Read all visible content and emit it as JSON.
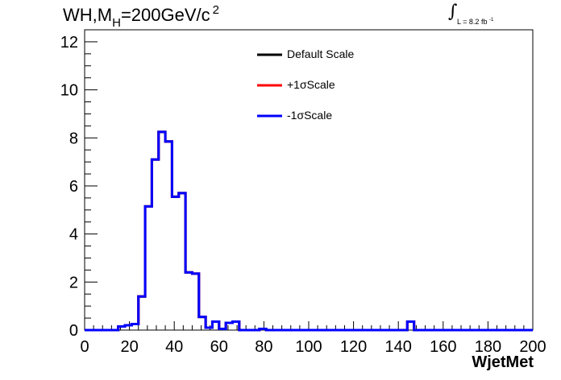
{
  "title": {
    "main": "WH,M",
    "sub": "H",
    "rest": "=200GeV/c",
    "sup": "2"
  },
  "luminosity": {
    "integral": "∫",
    "text": "L = 8.2 fb",
    "exp": "-1"
  },
  "chart_data": {
    "type": "line",
    "style": "step-histogram",
    "xlabel": "WjetMet",
    "ylabel": "",
    "xlim": [
      0,
      200
    ],
    "ylim": [
      0,
      12.5
    ],
    "x_ticks": [
      0,
      20,
      40,
      60,
      80,
      100,
      120,
      140,
      160,
      180,
      200
    ],
    "y_ticks": [
      0,
      2,
      4,
      6,
      8,
      10,
      12
    ],
    "bin_edges": [
      0,
      3,
      6,
      9,
      12,
      15,
      18,
      21,
      24,
      27,
      30,
      33,
      36,
      39,
      42,
      45,
      48,
      51,
      54,
      57,
      60,
      63,
      66,
      69,
      72,
      75,
      78,
      81,
      84,
      87,
      90,
      93,
      96,
      99,
      102,
      105,
      108,
      111,
      114,
      117,
      120,
      123,
      126,
      129,
      132,
      135,
      138,
      141,
      144,
      147,
      150,
      153,
      156,
      159,
      162,
      165,
      168,
      171,
      174,
      177,
      180,
      183,
      186,
      189,
      192,
      195,
      198,
      200
    ],
    "series": [
      {
        "name": "Default Scale",
        "color": "#000000",
        "values": [
          0,
          0,
          0,
          0,
          0,
          0.15,
          0.2,
          0.25,
          1.4,
          5.15,
          7.1,
          8.25,
          7.85,
          5.55,
          5.7,
          2.4,
          2.35,
          0.55,
          0.1,
          0.35,
          0.05,
          0.3,
          0.35,
          0,
          0,
          0,
          0.05,
          0,
          0,
          0,
          0,
          0,
          0,
          0,
          0,
          0,
          0,
          0,
          0,
          0,
          0,
          0,
          0,
          0,
          0,
          0,
          0,
          0,
          0.35,
          0,
          0,
          0,
          0,
          0,
          0,
          0,
          0,
          0,
          0,
          0,
          0,
          0,
          0,
          0,
          0,
          0,
          0
        ]
      },
      {
        "name": "+1σScale",
        "color": "#ff0000",
        "values": [
          0,
          0,
          0,
          0,
          0,
          0.15,
          0.2,
          0.25,
          1.4,
          5.15,
          7.1,
          8.25,
          7.85,
          5.55,
          5.7,
          2.4,
          2.35,
          0.55,
          0.1,
          0.35,
          0.05,
          0.3,
          0.35,
          0,
          0,
          0,
          0.05,
          0,
          0,
          0,
          0,
          0,
          0,
          0,
          0,
          0,
          0,
          0,
          0,
          0,
          0,
          0,
          0,
          0,
          0,
          0,
          0,
          0,
          0.35,
          0,
          0,
          0,
          0,
          0,
          0,
          0,
          0,
          0,
          0,
          0,
          0,
          0,
          0,
          0,
          0,
          0,
          0
        ]
      },
      {
        "name": "-1σScale",
        "color": "#0000ff",
        "values": [
          0,
          0,
          0,
          0,
          0,
          0.15,
          0.2,
          0.25,
          1.4,
          5.15,
          7.1,
          8.25,
          7.85,
          5.55,
          5.7,
          2.4,
          2.35,
          0.55,
          0.1,
          0.35,
          0.05,
          0.3,
          0.35,
          0,
          0,
          0,
          0.05,
          0,
          0,
          0,
          0,
          0,
          0,
          0,
          0,
          0,
          0,
          0,
          0,
          0,
          0,
          0,
          0,
          0,
          0,
          0,
          0,
          0,
          0.35,
          0,
          0,
          0,
          0,
          0,
          0,
          0,
          0,
          0,
          0,
          0,
          0,
          0,
          0,
          0,
          0,
          0,
          0
        ]
      }
    ],
    "legend_position": "top-center",
    "grid": false
  }
}
